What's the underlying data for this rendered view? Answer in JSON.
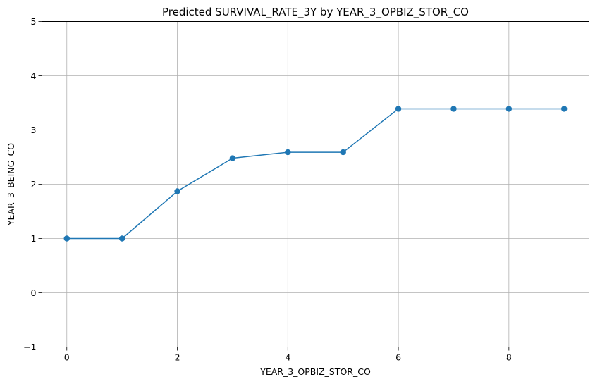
{
  "chart_data": {
    "type": "line",
    "title": "Predicted SURVIVAL_RATE_3Y by YEAR_3_OPBIZ_STOR_CO",
    "xlabel": "YEAR_3_OPBIZ_STOR_CO",
    "ylabel": "YEAR_3_BEING_CO",
    "xlim": [
      -0.45,
      9.45
    ],
    "ylim": [
      -1,
      5
    ],
    "xticks": [
      0,
      2,
      4,
      6,
      8
    ],
    "xtick_labels": [
      "0",
      "2",
      "4",
      "6",
      "8"
    ],
    "yticks": [
      -1,
      0,
      1,
      2,
      3,
      4,
      5
    ],
    "ytick_labels": [
      "−1",
      "0",
      "1",
      "2",
      "3",
      "4",
      "5"
    ],
    "grid": true,
    "legend": "none",
    "series": [
      {
        "color": "#1f77b4",
        "marker": "circle",
        "x": [
          0,
          1,
          2,
          3,
          4,
          5,
          6,
          7,
          8,
          9
        ],
        "y": [
          1.0,
          1.0,
          1.87,
          2.48,
          2.59,
          2.59,
          3.39,
          3.39,
          3.39,
          3.39
        ]
      }
    ]
  }
}
